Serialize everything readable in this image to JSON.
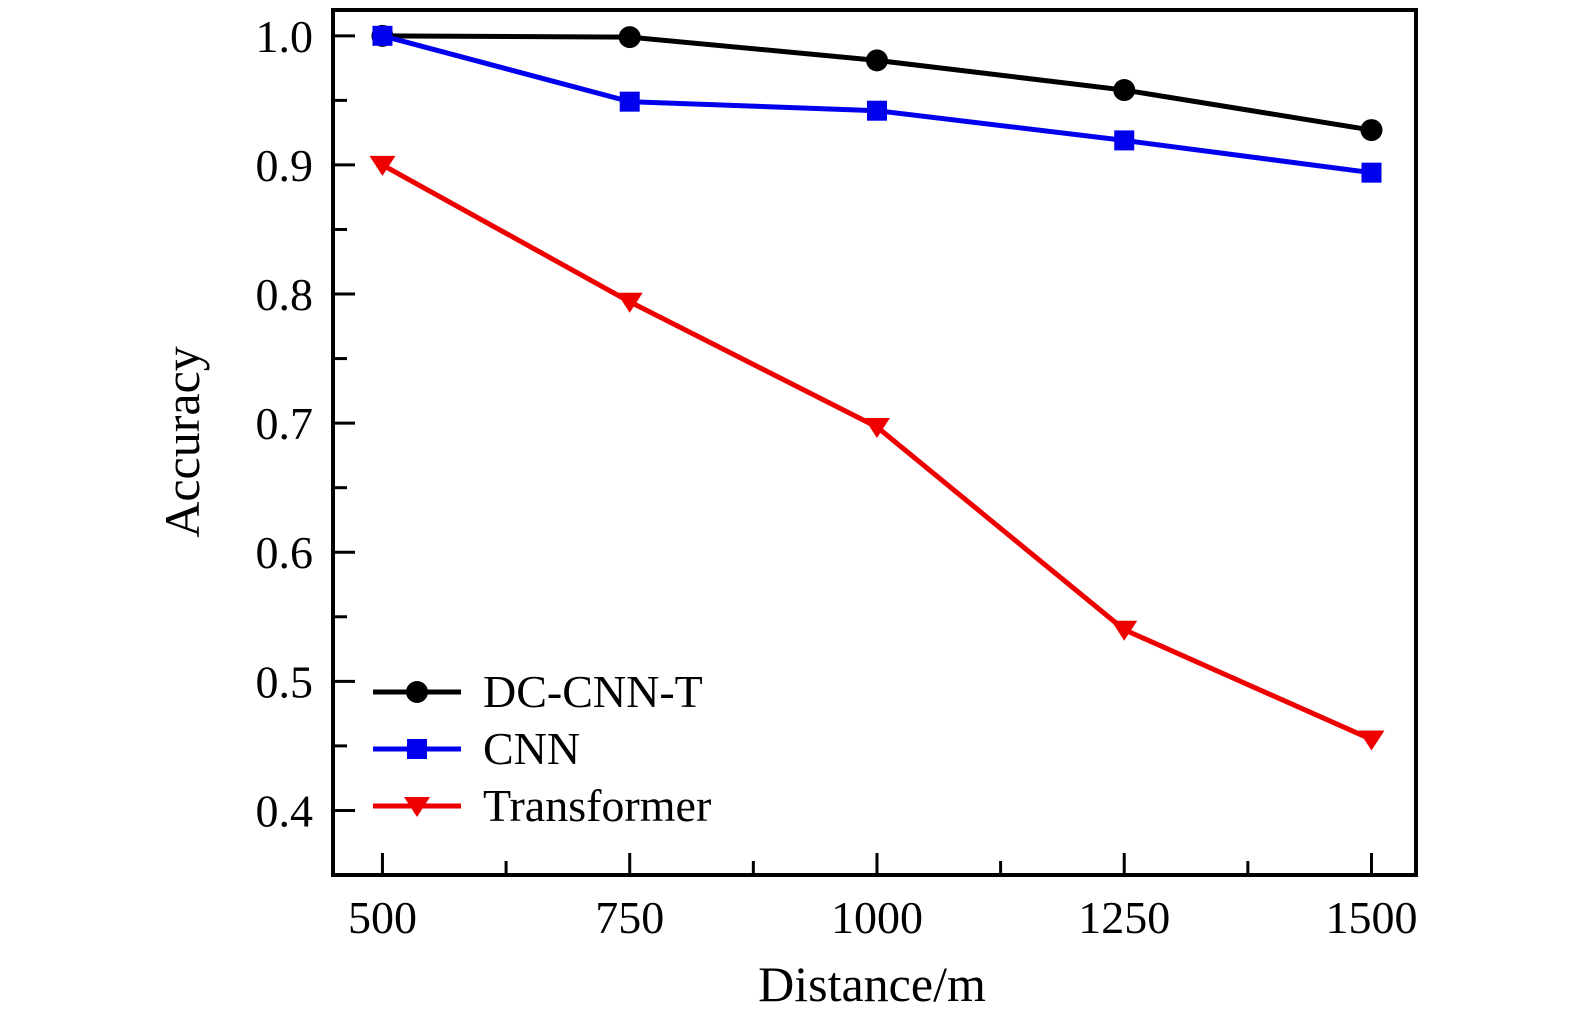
{
  "figure": {
    "background": "#ffffff",
    "frame_color": "#000000"
  },
  "chart_data": {
    "type": "line",
    "title": "",
    "xlabel": "Distance/m",
    "ylabel": "Accuracy",
    "x": [
      500,
      750,
      1000,
      1250,
      1500
    ],
    "series": [
      {
        "name": "DC-CNN-T",
        "color": "#000000",
        "marker": "circle",
        "values": [
          1.0,
          0.999,
          0.981,
          0.958,
          0.927
        ]
      },
      {
        "name": "CNN",
        "color": "#0000ee",
        "marker": "square",
        "values": [
          1.0,
          0.949,
          0.942,
          0.919,
          0.894
        ]
      },
      {
        "name": "Transformer",
        "color": "#ee0000",
        "marker": "triangle-down",
        "values": [
          0.9,
          0.794,
          0.697,
          0.54,
          0.455
        ]
      }
    ],
    "xlim": [
      450,
      1545
    ],
    "ylim": [
      0.35,
      1.02
    ],
    "x_ticks": {
      "major": [
        500,
        750,
        1000,
        1250,
        1500
      ],
      "labels": [
        "500",
        "750",
        "1000",
        "1250",
        "1500"
      ],
      "minor": [
        625,
        875,
        1125,
        1375
      ]
    },
    "y_ticks": {
      "major": [
        1.0,
        0.9,
        0.8,
        0.7,
        0.6,
        0.5,
        0.4
      ],
      "labels": [
        "1.0",
        "0.9",
        "0.8",
        "0.7",
        "0.6",
        "0.5",
        "0.4"
      ],
      "minor": [
        0.95,
        0.85,
        0.75,
        0.65,
        0.55,
        0.45
      ]
    },
    "grid": false,
    "legend": {
      "position": "lower-left-inside",
      "entries": [
        "DC-CNN-T",
        "CNN",
        "Transformer"
      ]
    }
  }
}
